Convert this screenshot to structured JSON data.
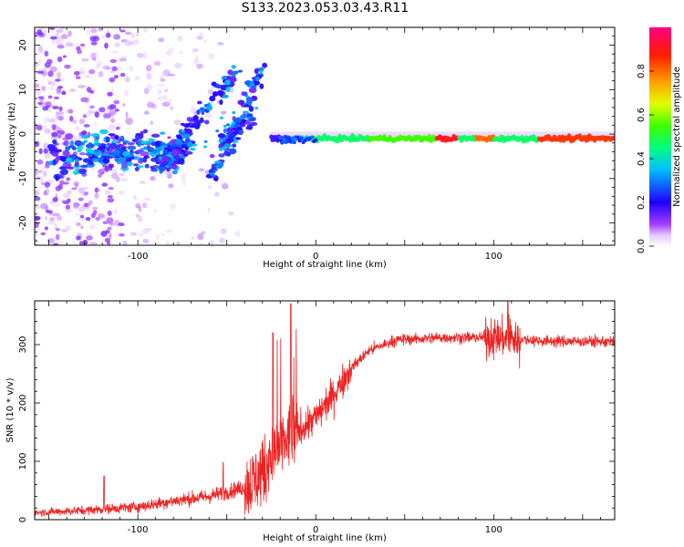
{
  "title": "S133.2023.053.03.43.R11",
  "chart_data": [
    {
      "type": "heatmap",
      "xlabel": "Height of straight line (km)",
      "ylabel": "Frequency (Hz)",
      "xlim": [
        -158,
        168
      ],
      "ylim": [
        -25,
        24
      ],
      "xticks": [
        -100,
        0,
        100
      ],
      "yticks": [
        -20,
        -10,
        0,
        10,
        20
      ],
      "colorbar": {
        "label": "Normalized spectral amplitude",
        "range": [
          0.0,
          1.0
        ],
        "ticks": [
          0.0,
          0.2,
          0.4,
          0.6,
          0.8
        ],
        "colors": [
          "#ffffff",
          "#c080ff",
          "#8000ff",
          "#0000ff",
          "#00ffff",
          "#00ff00",
          "#ffff00",
          "#ff8000",
          "#ff0000",
          "#ff00a0"
        ]
      },
      "carrier_band": {
        "x_start": -25,
        "x_end": 168,
        "freq": -1,
        "peak_amplitude": 0.95
      }
    },
    {
      "type": "line",
      "xlabel": "Height of straight line (km)",
      "ylabel": "SNR (10 * v/v)",
      "xlim": [
        -158,
        168
      ],
      "ylim": [
        0,
        375
      ],
      "xticks": [
        -100,
        0,
        100
      ],
      "yticks": [
        0,
        100,
        200,
        300
      ],
      "color": "#ee2222",
      "profile": [
        {
          "x": -158,
          "y": 12
        },
        {
          "x": -130,
          "y": 16
        },
        {
          "x": -100,
          "y": 22
        },
        {
          "x": -80,
          "y": 32
        },
        {
          "x": -60,
          "y": 40
        },
        {
          "x": -40,
          "y": 55
        },
        {
          "x": -32,
          "y": 75
        },
        {
          "x": -25,
          "y": 105
        },
        {
          "x": -15,
          "y": 140
        },
        {
          "x": 0,
          "y": 175
        },
        {
          "x": 10,
          "y": 215
        },
        {
          "x": 20,
          "y": 260
        },
        {
          "x": 30,
          "y": 290
        },
        {
          "x": 45,
          "y": 308
        },
        {
          "x": 70,
          "y": 312
        },
        {
          "x": 100,
          "y": 312
        },
        {
          "x": 130,
          "y": 306
        },
        {
          "x": 168,
          "y": 305
        }
      ],
      "spikes": [
        {
          "x": -119,
          "y": 75
        },
        {
          "x": -52,
          "y": 98
        },
        {
          "x": -24,
          "y": 320
        },
        {
          "x": -14,
          "y": 370
        },
        {
          "x": 108,
          "y": 375
        }
      ]
    }
  ]
}
